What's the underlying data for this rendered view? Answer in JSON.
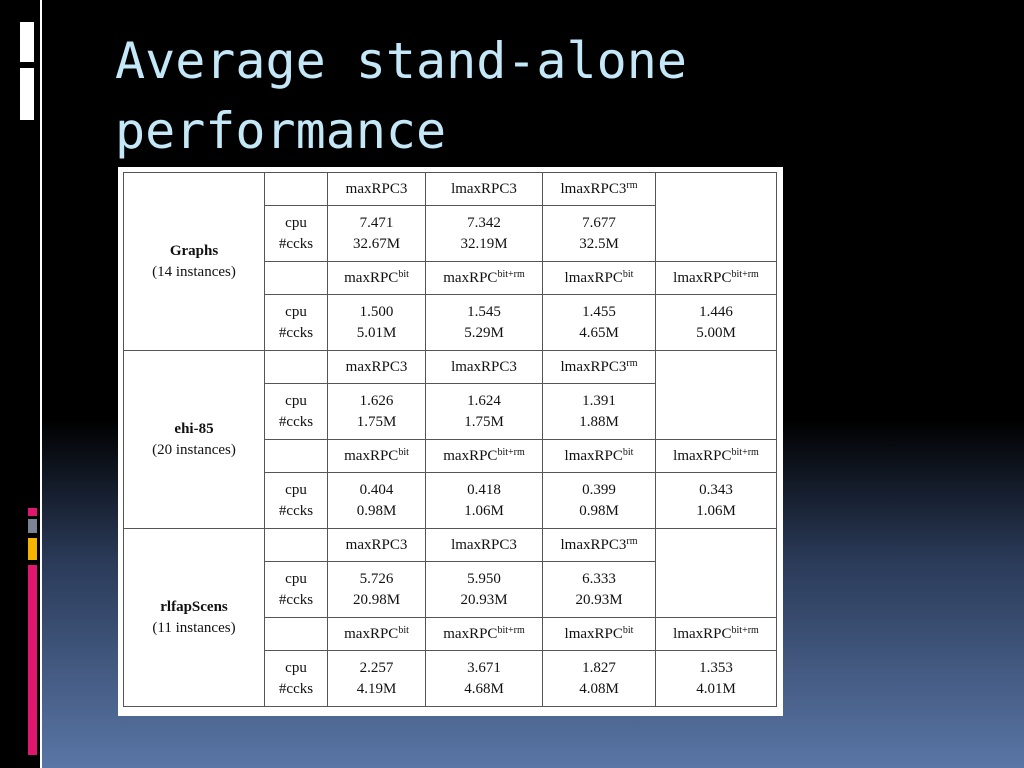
{
  "title": "Average stand-alone performance",
  "table": {
    "groups": [
      {
        "name": "Graphs",
        "instances": "(14 instances)",
        "blocks": [
          {
            "headers": [
              {
                "text": "maxRPC3"
              },
              {
                "text": "lmaxRPC3"
              },
              {
                "text": "lmaxRPC3",
                "sup": "rm"
              }
            ],
            "metrics": [
              "cpu",
              "#ccks"
            ],
            "cpu": [
              "7.471",
              "7.342",
              "7.677"
            ],
            "ccks": [
              "32.67M",
              "32.19M",
              "32.5M"
            ]
          },
          {
            "headers": [
              {
                "text": "maxRPC",
                "sup": "bit"
              },
              {
                "text": "maxRPC",
                "sup": "bit+rm"
              },
              {
                "text": "lmaxRPC",
                "sup": "bit"
              },
              {
                "text": "lmaxRPC",
                "sup": "bit+rm"
              }
            ],
            "metrics": [
              "cpu",
              "#ccks"
            ],
            "cpu": [
              "1.500",
              "1.545",
              "1.455",
              "1.446"
            ],
            "ccks": [
              "5.01M",
              "5.29M",
              "4.65M",
              "5.00M"
            ]
          }
        ]
      },
      {
        "name": "ehi-85",
        "instances": "(20 instances)",
        "blocks": [
          {
            "headers": [
              {
                "text": "maxRPC3"
              },
              {
                "text": "lmaxRPC3"
              },
              {
                "text": "lmaxRPC3",
                "sup": "rm"
              }
            ],
            "metrics": [
              "cpu",
              "#ccks"
            ],
            "cpu": [
              "1.626",
              "1.624",
              "1.391"
            ],
            "ccks": [
              "1.75M",
              "1.75M",
              "1.88M"
            ]
          },
          {
            "headers": [
              {
                "text": "maxRPC",
                "sup": "bit"
              },
              {
                "text": "maxRPC",
                "sup": "bit+rm"
              },
              {
                "text": "lmaxRPC",
                "sup": "bit"
              },
              {
                "text": "lmaxRPC",
                "sup": "bit+rm"
              }
            ],
            "metrics": [
              "cpu",
              "#ccks"
            ],
            "cpu": [
              "0.404",
              "0.418",
              "0.399",
              "0.343"
            ],
            "ccks": [
              "0.98M",
              "1.06M",
              "0.98M",
              "1.06M"
            ]
          }
        ]
      },
      {
        "name": "rlfapScens",
        "instances": "(11 instances)",
        "blocks": [
          {
            "headers": [
              {
                "text": "maxRPC3"
              },
              {
                "text": "lmaxRPC3"
              },
              {
                "text": "lmaxRPC3",
                "sup": "rm"
              }
            ],
            "metrics": [
              "cpu",
              "#ccks"
            ],
            "cpu": [
              "5.726",
              "5.950",
              "6.333"
            ],
            "ccks": [
              "20.98M",
              "20.93M",
              "20.93M"
            ]
          },
          {
            "headers": [
              {
                "text": "maxRPC",
                "sup": "bit"
              },
              {
                "text": "maxRPC",
                "sup": "bit+rm"
              },
              {
                "text": "lmaxRPC",
                "sup": "bit"
              },
              {
                "text": "lmaxRPC",
                "sup": "bit+rm"
              }
            ],
            "metrics": [
              "cpu",
              "#ccks"
            ],
            "cpu": [
              "2.257",
              "3.671",
              "1.827",
              "1.353"
            ],
            "ccks": [
              "4.19M",
              "4.68M",
              "4.08M",
              "4.01M"
            ]
          }
        ]
      }
    ]
  }
}
